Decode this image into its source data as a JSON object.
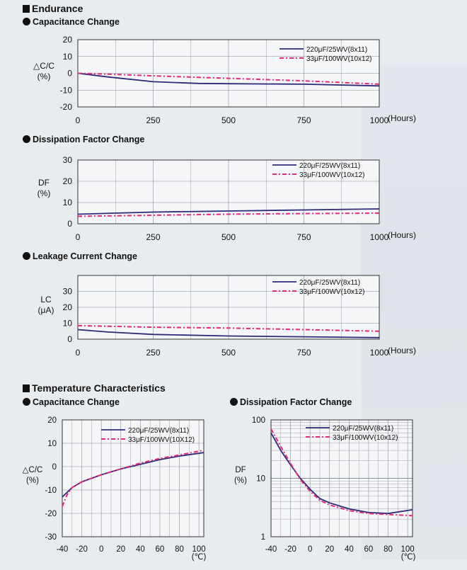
{
  "endurance": {
    "title": "Endurance",
    "capacitance_title": "Capacitance Change",
    "df_title": "Dissipation Factor Change",
    "lc_title": "Leakage Current Change"
  },
  "temperature": {
    "title": "Temperature Characteristics",
    "capacitance_title": "Capacitance Change",
    "df_title": "Dissipation Factor Change"
  },
  "colors": {
    "series1": "#2e2a7a",
    "series2": "#e8287a"
  },
  "chart_data": [
    {
      "id": "end-cap",
      "type": "line",
      "ylabel": [
        "△C/C",
        "(%)"
      ],
      "xunit": "(Hours)",
      "xlim": [
        0,
        1000
      ],
      "ylim": [
        -20,
        20
      ],
      "xticks": [
        0,
        250,
        500,
        750,
        1000
      ],
      "yticks": [
        20,
        10,
        0,
        -10,
        -20
      ],
      "grid": true,
      "legend": "top-right",
      "series": [
        {
          "name": "220μF/25WV(8x11)",
          "style": "solid",
          "x": [
            0,
            100,
            250,
            400,
            500,
            750,
            1000
          ],
          "y": [
            0,
            -2.2,
            -5,
            -6,
            -6.2,
            -6.5,
            -7.5
          ]
        },
        {
          "name": "33μF/100WV(10x12)",
          "style": "dashdot",
          "x": [
            0,
            100,
            250,
            500,
            750,
            1000
          ],
          "y": [
            0,
            -0.5,
            -1.5,
            -3,
            -4.5,
            -6.5
          ]
        }
      ]
    },
    {
      "id": "end-df",
      "type": "line",
      "ylabel": [
        "DF",
        "(%)"
      ],
      "xunit": "(Hours)",
      "xlim": [
        0,
        1000
      ],
      "ylim": [
        0,
        30
      ],
      "xticks": [
        0,
        250,
        500,
        750,
        1000
      ],
      "yticks": [
        30,
        20,
        10,
        0
      ],
      "grid": true,
      "legend": "top-right",
      "series": [
        {
          "name": "220μF/25WV(8x11)",
          "style": "solid",
          "x": [
            0,
            250,
            500,
            750,
            1000
          ],
          "y": [
            4.5,
            5.5,
            6,
            6.5,
            7
          ]
        },
        {
          "name": "33μF/100WV(10x12)",
          "style": "dashdot",
          "x": [
            0,
            250,
            500,
            750,
            1000
          ],
          "y": [
            3.5,
            4,
            4.5,
            4.8,
            5
          ]
        }
      ]
    },
    {
      "id": "end-lc",
      "type": "line",
      "ylabel": [
        "LC",
        "(μA)"
      ],
      "xunit": "(Hours)",
      "xlim": [
        0,
        1000
      ],
      "ylim": [
        0,
        40
      ],
      "xticks": [
        0,
        250,
        500,
        750,
        1000
      ],
      "yticks": [
        30,
        20,
        10,
        0
      ],
      "grid": true,
      "legend": "top-right",
      "series": [
        {
          "name": "220μF/25WV(8x11)",
          "style": "solid",
          "x": [
            0,
            100,
            250,
            500,
            750,
            1000
          ],
          "y": [
            6,
            4.5,
            3,
            2,
            1.5,
            1
          ]
        },
        {
          "name": "33μF/100WV(10x12)",
          "style": "dashdot",
          "x": [
            0,
            250,
            500,
            750,
            1000
          ],
          "y": [
            8.5,
            7.5,
            7,
            6,
            5
          ]
        }
      ]
    },
    {
      "id": "temp-cap",
      "type": "line",
      "ylabel": [
        "△C/C",
        "(%)"
      ],
      "xunit": "(℃)",
      "xlim": [
        -40,
        105
      ],
      "ylim": [
        -30,
        20
      ],
      "xticks": [
        -40,
        -20,
        0,
        20,
        40,
        60,
        80,
        100
      ],
      "yticks": [
        20,
        10,
        0,
        -10,
        -20,
        -30
      ],
      "grid": true,
      "legend": "top-right",
      "series": [
        {
          "name": "220μF/25WV(8x11)",
          "style": "solid",
          "x": [
            -40,
            -30,
            -20,
            -10,
            0,
            20,
            40,
            60,
            80,
            105
          ],
          "y": [
            -13,
            -9,
            -6.5,
            -5,
            -3.5,
            -1,
            1,
            3,
            4.5,
            6
          ]
        },
        {
          "name": "33μF/100WV(10X12)",
          "style": "dashdot",
          "x": [
            -40,
            -35,
            -30,
            -20,
            -10,
            0,
            20,
            40,
            60,
            80,
            105
          ],
          "y": [
            -17,
            -12,
            -9,
            -6.5,
            -5,
            -3.5,
            -1,
            1.5,
            3.5,
            5,
            7
          ]
        }
      ]
    },
    {
      "id": "temp-df",
      "type": "line",
      "yscale": "log",
      "ylabel": [
        "DF",
        "(%)"
      ],
      "xunit": "(℃)",
      "xlim": [
        -40,
        105
      ],
      "ylim": [
        1,
        100
      ],
      "xticks": [
        -40,
        -20,
        0,
        20,
        40,
        60,
        80,
        100
      ],
      "yticks": [
        100,
        10,
        1
      ],
      "grid": true,
      "legend": "top-right",
      "series": [
        {
          "name": "220μF/25WV(8x11)",
          "style": "solid",
          "x": [
            -40,
            -30,
            -20,
            -10,
            0,
            10,
            20,
            40,
            60,
            80,
            105
          ],
          "y": [
            60,
            30,
            17,
            10,
            6.5,
            4.5,
            3.8,
            3,
            2.6,
            2.5,
            2.9
          ]
        },
        {
          "name": "33μF/100WV(10x12)",
          "style": "dashdot",
          "x": [
            -40,
            -30,
            -20,
            -10,
            0,
            10,
            20,
            40,
            60,
            80,
            105
          ],
          "y": [
            70,
            35,
            18,
            9.5,
            6,
            4.2,
            3.5,
            2.8,
            2.5,
            2.4,
            2.3
          ]
        }
      ]
    }
  ]
}
